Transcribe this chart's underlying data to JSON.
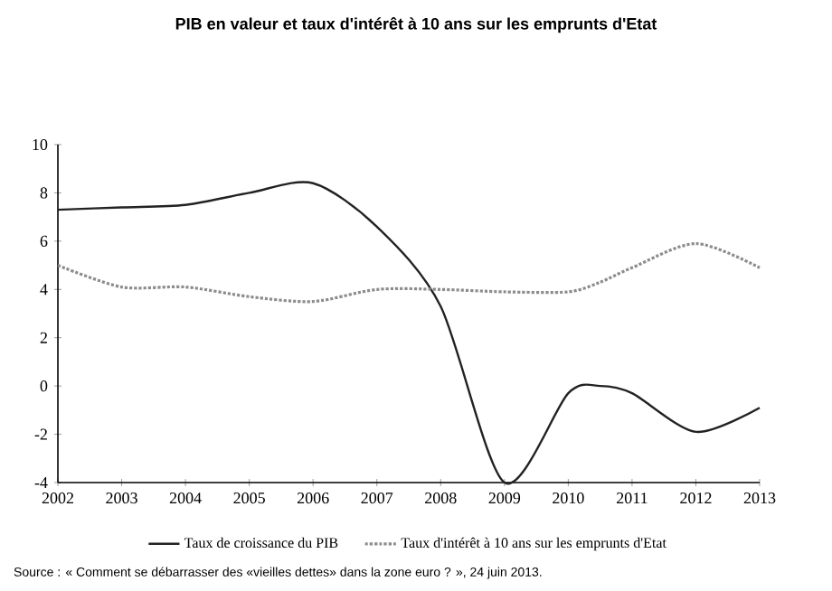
{
  "chart_data": {
    "type": "line",
    "title": "PIB en valeur et taux d'intérêt à 10 ans sur les emprunts d'Etat",
    "x": [
      2002,
      2003,
      2004,
      2005,
      2006,
      2007,
      2008,
      2009,
      2010,
      2010.5,
      2011,
      2012,
      2013
    ],
    "series": [
      {
        "name": "Taux de croissance du PIB",
        "color": "#222222",
        "line_style": "solid",
        "values": [
          7.3,
          7.4,
          7.5,
          8.0,
          8.4,
          6.6,
          3.3,
          -4.0,
          -0.3,
          0.0,
          -0.3,
          -1.9,
          -0.9
        ]
      },
      {
        "name": "Taux d'intérêt à 10 ans sur les emprunts d'Etat",
        "color": "#8c8c8c",
        "line_style": "dotted",
        "values": [
          5.0,
          4.1,
          4.1,
          3.7,
          3.5,
          4.0,
          4.0,
          3.9,
          3.9,
          4.3,
          4.9,
          5.9,
          4.9
        ]
      }
    ],
    "xlim": [
      2002,
      2013
    ],
    "xticks": [
      2002,
      2003,
      2004,
      2005,
      2006,
      2007,
      2008,
      2009,
      2010,
      2011,
      2012,
      2013
    ],
    "ylim": [
      -4,
      10
    ],
    "yticks": [
      -4,
      -2,
      0,
      2,
      4,
      6,
      8,
      10
    ],
    "grid": false,
    "legend": "bottom",
    "marker": "none",
    "annotations": [
      "Source : « Comment se débarrasser des «vieilles dettes» dans la zone euro ? », 24 juin 2013."
    ]
  }
}
